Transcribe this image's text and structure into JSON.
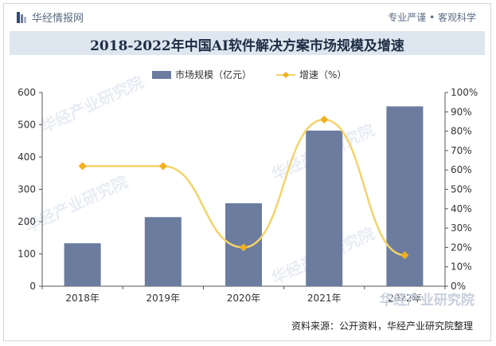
{
  "brand": {
    "name": "华经情报网",
    "slogan": "专业严谨 • 客观科学"
  },
  "watermark_text": "华经产业研究院",
  "corner_logo_text": "华经产业研究院",
  "source": "资料来源：公开资料，华经产业研究院整理",
  "colors": {
    "bar": "#6b7c9f",
    "line": "#f5d36a",
    "marker": "#f2b01e",
    "title_bg": "#dee6ef"
  },
  "chart_data": {
    "type": "bar",
    "title": "2018-2022年中国AI软件解决方案市场规模及增速",
    "categories": [
      "2018年",
      "2019年",
      "2020年",
      "2021年",
      "2022年"
    ],
    "series": [
      {
        "name": "市场规模（亿元）",
        "type": "bar",
        "axis": "left",
        "values": [
          133,
          214,
          257,
          482,
          557
        ]
      },
      {
        "name": "增速（%）",
        "type": "line",
        "axis": "right",
        "values": [
          62,
          62,
          20,
          86,
          16
        ]
      }
    ],
    "ylim": [
      0,
      600
    ],
    "yticks": [
      "0",
      "100",
      "200",
      "300",
      "400",
      "500",
      "600"
    ],
    "y2lim": [
      0,
      100
    ],
    "y2ticks": [
      "0%",
      "10%",
      "20%",
      "30%",
      "40%",
      "50%",
      "60%",
      "70%",
      "80%",
      "90%",
      "100%"
    ],
    "legend_position": "top",
    "grid": false
  }
}
